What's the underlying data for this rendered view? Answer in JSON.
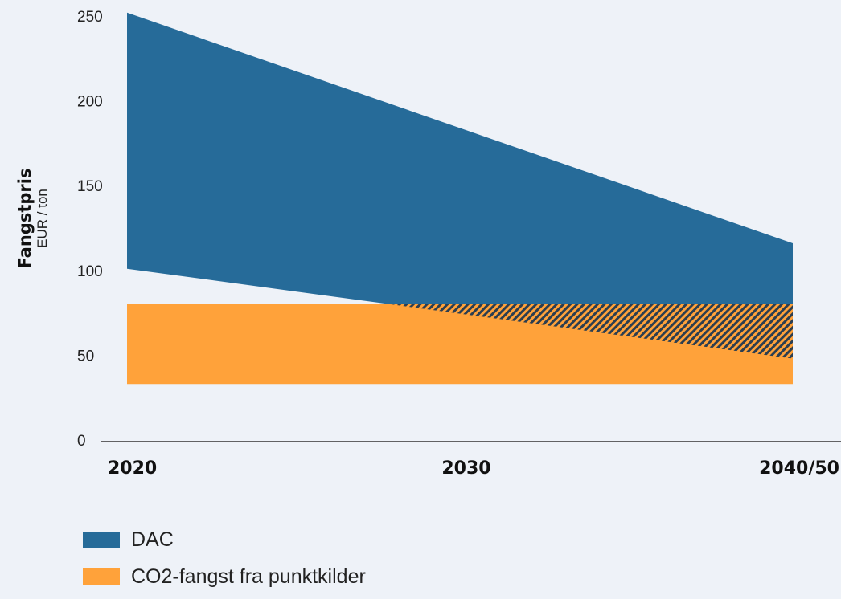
{
  "chart_data": {
    "type": "area",
    "x_categories": [
      "2020",
      "2030",
      "2040/50"
    ],
    "ylabel": "Fangstpris",
    "yunit": "EUR / ton",
    "ylim": [
      0,
      250
    ],
    "yticks": [
      0,
      50,
      100,
      150,
      200,
      250
    ],
    "grid": false,
    "legend_position": "bottom-left",
    "series": [
      {
        "name": "DAC",
        "color": "#266b99",
        "upper": [
          {
            "x": "2020",
            "y": 252
          },
          {
            "x": "2040/50",
            "y": 116
          }
        ],
        "lower": [
          {
            "x": "2020",
            "y": 101
          },
          {
            "x": "2040/50",
            "y": 48
          }
        ]
      },
      {
        "name": "CO2-fangst fra punktkilder",
        "color": "#ffa23a",
        "upper": [
          {
            "x": "2020",
            "y": 80
          },
          {
            "x": "2040/50",
            "y": 80
          }
        ],
        "lower": [
          {
            "x": "2020",
            "y": 33
          },
          {
            "x": "2040/50",
            "y": 33
          }
        ]
      }
    ],
    "overlap_pattern": "hatched"
  },
  "legend": {
    "items": [
      {
        "label": "DAC",
        "color": "#266b99"
      },
      {
        "label": "CO2-fangst fra punktkilder",
        "color": "#ffa23a"
      }
    ]
  }
}
